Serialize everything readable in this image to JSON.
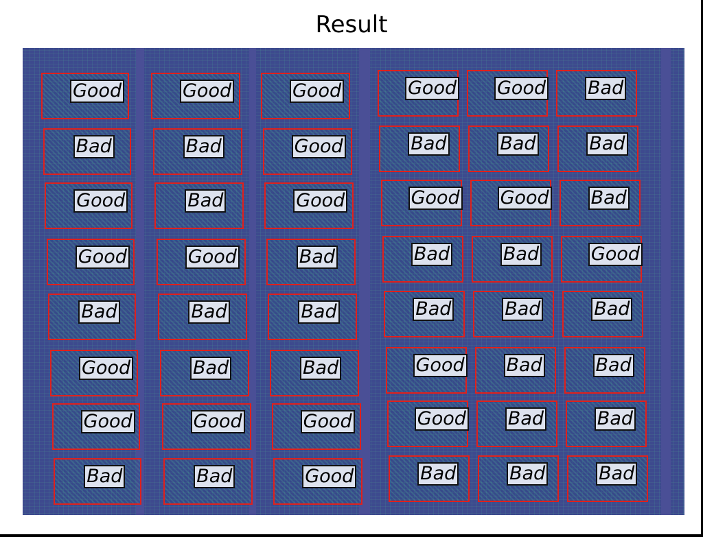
{
  "title": "Result",
  "box_color": "#e0201c",
  "grid": [
    [
      "Good",
      "Good",
      "Good",
      "Good",
      "Good",
      "Bad"
    ],
    [
      "Bad",
      "Bad",
      "Good",
      "Bad",
      "Bad",
      "Bad"
    ],
    [
      "Good",
      "Bad",
      "Good",
      "Good",
      "Good",
      "Bad"
    ],
    [
      "Good",
      "Good",
      "Bad",
      "Bad",
      "Bad",
      "Good"
    ],
    [
      "Bad",
      "Bad",
      "Bad",
      "Bad",
      "Bad",
      "Bad"
    ],
    [
      "Good",
      "Bad",
      "Bad",
      "Good",
      "Bad",
      "Bad"
    ],
    [
      "Good",
      "Good",
      "Good",
      "Good",
      "Bad",
      "Bad"
    ],
    [
      "Bad",
      "Bad",
      "Good",
      "Bad",
      "Bad",
      "Bad"
    ]
  ]
}
